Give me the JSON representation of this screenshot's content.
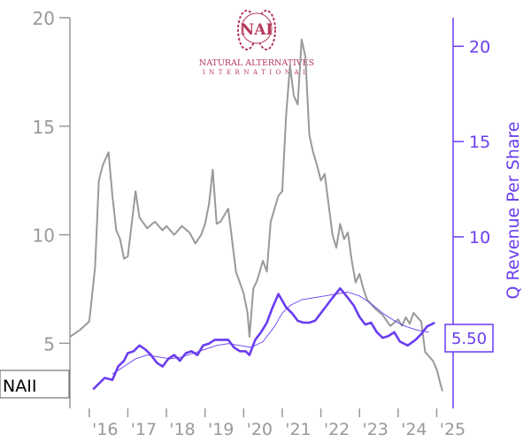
{
  "colors": {
    "price": "#999999",
    "revenue": "#6a3cf0",
    "revenue_avg": "#6a3cf0",
    "left_axis": "#999999",
    "right_axis": "#6a3cf0",
    "logo": "#b4385a"
  },
  "logo": {
    "monogram": "NAI",
    "line1": "NATURAL ALTERNATIVES",
    "line2": "INTERNATIONAL"
  },
  "ticker": "NAII",
  "last_revenue_label": "5.50",
  "chart_data": {
    "type": "line",
    "title": "",
    "xlabel": "",
    "ylabel_left": "",
    "ylabel_right": "Q Revenue Per Share",
    "x_tick_labels": [
      "'16",
      "'17",
      "'18",
      "'19",
      "'20",
      "'21",
      "'22",
      "'23",
      "'24",
      "'25"
    ],
    "x_tick_values": [
      2016,
      2017,
      2018,
      2019,
      2020,
      2021,
      2022,
      2023,
      2024,
      2025
    ],
    "xlim": [
      2015.5,
      2025.15
    ],
    "left_axis": {
      "ticks": [
        5,
        10,
        15,
        20
      ],
      "ylim": [
        2.0,
        20.0
      ]
    },
    "right_axis": {
      "ticks": [
        5,
        10,
        15,
        20
      ],
      "ylim": [
        1.0,
        21.5
      ]
    },
    "series": [
      {
        "axis": "left",
        "style": "price",
        "x": [
          2015.5,
          2015.75,
          2016.0,
          2016.05,
          2016.15,
          2016.25,
          2016.35,
          2016.5,
          2016.6,
          2016.7,
          2016.8,
          2016.9,
          2017.0,
          2017.1,
          2017.2,
          2017.3,
          2017.5,
          2017.7,
          2017.9,
          2018.0,
          2018.2,
          2018.4,
          2018.6,
          2018.75,
          2018.9,
          2019.0,
          2019.1,
          2019.2,
          2019.3,
          2019.4,
          2019.6,
          2019.8,
          2020.0,
          2020.1,
          2020.15,
          2020.25,
          2020.35,
          2020.5,
          2020.6,
          2020.7,
          2020.8,
          2020.9,
          2021.0,
          2021.1,
          2021.2,
          2021.3,
          2021.4,
          2021.5,
          2021.6,
          2021.7,
          2021.8,
          2021.9,
          2022.0,
          2022.1,
          2022.2,
          2022.3,
          2022.4,
          2022.5,
          2022.6,
          2022.7,
          2022.8,
          2022.9,
          2023.0,
          2023.1,
          2023.2,
          2023.4,
          2023.6,
          2023.8,
          2024.0,
          2024.1,
          2024.2,
          2024.3,
          2024.4,
          2024.5,
          2024.6,
          2024.7,
          2024.8,
          2024.9,
          2025.0,
          2025.1,
          2025.15
        ],
        "values": [
          5.3,
          5.6,
          6.0,
          6.8,
          8.5,
          12.5,
          13.2,
          13.8,
          11.8,
          10.2,
          9.8,
          8.9,
          9.0,
          10.5,
          12.0,
          10.8,
          10.3,
          10.6,
          10.2,
          10.4,
          10.0,
          10.4,
          10.1,
          9.6,
          10.0,
          10.5,
          11.4,
          13.0,
          10.5,
          10.6,
          11.2,
          8.3,
          7.3,
          6.4,
          5.3,
          7.5,
          7.9,
          8.8,
          8.3,
          10.6,
          11.2,
          11.8,
          12.0,
          15.5,
          17.8,
          16.4,
          16.0,
          19.0,
          18.2,
          14.6,
          13.8,
          13.2,
          12.5,
          12.8,
          11.4,
          10.0,
          9.4,
          10.5,
          9.8,
          10.1,
          8.8,
          7.8,
          8.2,
          7.5,
          7.0,
          6.6,
          6.3,
          5.8,
          6.1,
          5.8,
          6.2,
          5.9,
          6.4,
          6.2,
          6.0,
          4.6,
          4.4,
          4.2,
          3.8,
          3.1,
          2.8
        ]
      },
      {
        "axis": "right",
        "style": "revenue",
        "name": "Q Revenue Per Share",
        "x": [
          2016.1,
          2016.25,
          2016.4,
          2016.6,
          2016.75,
          2016.9,
          2017.0,
          2017.15,
          2017.3,
          2017.45,
          2017.6,
          2017.75,
          2017.9,
          2018.05,
          2018.2,
          2018.35,
          2018.5,
          2018.65,
          2018.8,
          2018.95,
          2019.1,
          2019.25,
          2019.45,
          2019.6,
          2019.75,
          2019.9,
          2020.05,
          2020.15,
          2020.3,
          2020.45,
          2020.6,
          2020.75,
          2020.9,
          2021.1,
          2021.25,
          2021.4,
          2021.55,
          2021.7,
          2021.85,
          2022.0,
          2022.15,
          2022.3,
          2022.5,
          2022.7,
          2022.85,
          2023.0,
          2023.15,
          2023.3,
          2023.45,
          2023.6,
          2023.75,
          2023.9,
          2024.05,
          2024.25,
          2024.45,
          2024.6,
          2024.75,
          2024.95
        ],
        "values": [
          2.0,
          2.3,
          2.6,
          2.5,
          3.2,
          3.5,
          3.9,
          4.0,
          4.3,
          4.1,
          3.8,
          3.4,
          3.2,
          3.6,
          3.8,
          3.5,
          3.9,
          4.0,
          3.8,
          4.3,
          4.4,
          4.6,
          4.6,
          4.6,
          4.2,
          4.0,
          4.0,
          3.8,
          4.6,
          5.0,
          5.5,
          6.3,
          7.0,
          6.3,
          6.0,
          5.6,
          5.5,
          5.5,
          5.6,
          6.0,
          6.4,
          6.8,
          7.3,
          6.8,
          6.4,
          5.8,
          5.4,
          5.5,
          5.0,
          4.7,
          4.8,
          5.0,
          4.5,
          4.3,
          4.6,
          4.9,
          5.3,
          5.5
        ]
      },
      {
        "axis": "right",
        "style": "revenue_avg",
        "x": [
          2016.6,
          2016.9,
          2017.2,
          2017.5,
          2017.8,
          2018.1,
          2018.4,
          2018.7,
          2019.0,
          2019.3,
          2019.6,
          2019.9,
          2020.2,
          2020.5,
          2020.8,
          2021.0,
          2021.2,
          2021.5,
          2021.8,
          2022.1,
          2022.4,
          2022.7,
          2023.0,
          2023.3,
          2023.6,
          2023.9,
          2024.2,
          2024.5,
          2024.8
        ],
        "values": [
          2.8,
          3.2,
          3.6,
          3.8,
          3.7,
          3.6,
          3.7,
          3.9,
          4.1,
          4.3,
          4.4,
          4.3,
          4.2,
          4.5,
          5.3,
          6.0,
          6.4,
          6.7,
          6.8,
          6.9,
          7.0,
          7.1,
          6.9,
          6.5,
          6.0,
          5.6,
          5.3,
          5.1,
          5.0
        ]
      }
    ]
  }
}
